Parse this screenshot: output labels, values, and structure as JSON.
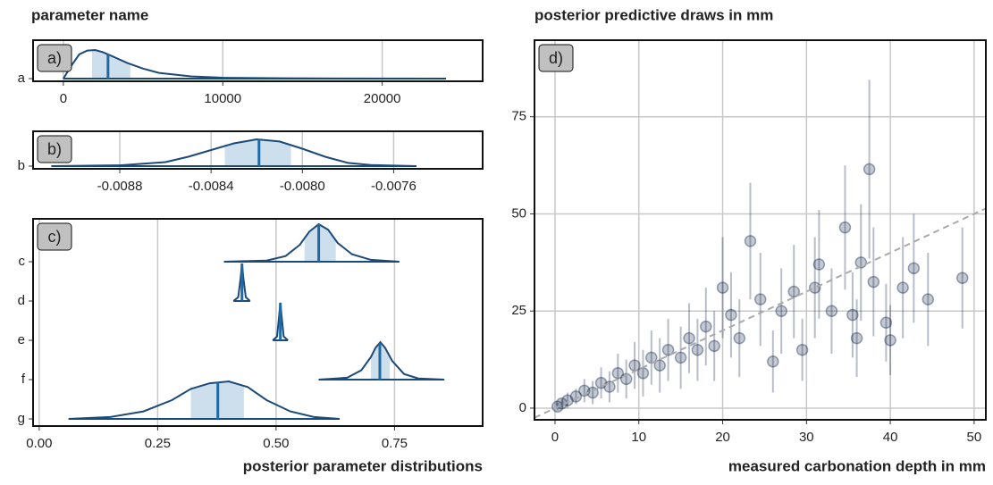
{
  "chart_data": [
    {
      "type": "ridge",
      "ylabel": "parameter name",
      "panel_label": "a)",
      "categories": [
        "a"
      ],
      "xlim": [
        -1900,
        26300
      ],
      "xticks": [
        0,
        10000,
        20000
      ],
      "grid": true,
      "color": "#1b4a7a",
      "interval_color": "#cddeec",
      "distributions": [
        {
          "x": [
            0,
            500,
            1000,
            1500,
            2000,
            2500,
            3000,
            4000,
            5000,
            6000,
            8000,
            10000,
            14000,
            18000,
            24000
          ],
          "density": [
            0,
            0.45,
            0.85,
            0.98,
            1,
            0.92,
            0.8,
            0.55,
            0.35,
            0.2,
            0.08,
            0.03,
            0.01,
            0.003,
            0
          ],
          "median": 2800,
          "interval": [
            1800,
            4200
          ]
        }
      ]
    },
    {
      "type": "ridge",
      "panel_label": "b)",
      "categories": [
        "b"
      ],
      "xlim": [
        -0.00918,
        -0.00721
      ],
      "xticks": [
        -0.0088,
        -0.0084,
        {
          "value": -0.008,
          "label": "-0.0080"
        },
        -0.0076
      ],
      "grid": true,
      "color": "#1b4a7a",
      "interval_color": "#cddeec",
      "distributions": [
        {
          "x": [
            -0.0091,
            -0.0088,
            -0.0086,
            -0.0085,
            -0.0084,
            -0.0083,
            -0.0082,
            -0.0081,
            -0.008,
            -0.0079,
            -0.0078,
            -0.0077,
            -0.0075
          ],
          "density": [
            0,
            0.03,
            0.15,
            0.35,
            0.6,
            0.85,
            1,
            0.92,
            0.65,
            0.35,
            0.12,
            0.04,
            0
          ],
          "median": -0.00819,
          "interval": [
            -0.00834,
            -0.00805
          ]
        }
      ]
    },
    {
      "type": "ridge",
      "panel_label": "c)",
      "xlabel": "posterior parameter distributions",
      "categories": [
        "c",
        "d",
        "e",
        "f",
        "g"
      ],
      "xlim": [
        -0.013,
        0.936
      ],
      "xticks": [
        {
          "value": 0,
          "label": "0.00"
        },
        {
          "value": 0.25,
          "label": "0.25"
        },
        {
          "value": 0.5,
          "label": "0.50"
        },
        {
          "value": 0.75,
          "label": "0.75"
        }
      ],
      "grid": true,
      "color": "#1b4a7a",
      "interval_color": "#cddeec",
      "distributions": [
        {
          "x": [
            0.39,
            0.48,
            0.52,
            0.55,
            0.57,
            0.59,
            0.61,
            0.63,
            0.66,
            0.7,
            0.76
          ],
          "density": [
            0,
            0.03,
            0.15,
            0.45,
            0.8,
            1,
            0.85,
            0.5,
            0.2,
            0.05,
            0
          ],
          "median": 0.59,
          "interval": [
            0.56,
            0.626
          ]
        },
        {
          "x": [
            0.41,
            0.42,
            0.425,
            0.428,
            0.431,
            0.436,
            0.445
          ],
          "density": [
            0,
            0.1,
            0.6,
            1,
            0.6,
            0.1,
            0
          ],
          "median": 0.428,
          "interval": [
            0.425,
            0.431
          ]
        },
        {
          "x": [
            0.493,
            0.502,
            0.506,
            0.509,
            0.512,
            0.516,
            0.525
          ],
          "density": [
            0,
            0.1,
            0.6,
            1,
            0.6,
            0.1,
            0
          ],
          "median": 0.509,
          "interval": [
            0.506,
            0.512
          ]
        },
        {
          "x": [
            0.59,
            0.65,
            0.68,
            0.7,
            0.71,
            0.72,
            0.73,
            0.745,
            0.77,
            0.8,
            0.855
          ],
          "density": [
            0,
            0.05,
            0.25,
            0.6,
            0.85,
            1,
            0.85,
            0.5,
            0.15,
            0.03,
            0
          ],
          "median": 0.719,
          "interval": [
            0.7,
            0.74
          ]
        },
        {
          "x": [
            0.062,
            0.15,
            0.22,
            0.28,
            0.32,
            0.36,
            0.4,
            0.44,
            0.48,
            0.53,
            0.58,
            0.634
          ],
          "density": [
            0,
            0.05,
            0.2,
            0.5,
            0.8,
            0.95,
            1,
            0.85,
            0.5,
            0.2,
            0.05,
            0
          ],
          "median": 0.377,
          "interval": [
            0.32,
            0.432
          ]
        }
      ]
    },
    {
      "type": "scatter",
      "title": "posterior predictive draws in mm",
      "xlabel": "measured carbonation depth in mm",
      "panel_label": "d)",
      "xlim": [
        -2.45,
        51.4
      ],
      "ylim": [
        -3,
        94.7
      ],
      "xticks": [
        0,
        10,
        20,
        30,
        40,
        50
      ],
      "yticks": [
        0,
        25,
        50,
        75
      ],
      "grid": true,
      "color": "#12264d",
      "identity_line": true,
      "x": [
        0.3,
        0.8,
        1.5,
        2.5,
        3.5,
        4.5,
        5.5,
        6.5,
        7.5,
        8.5,
        9.5,
        10.5,
        11.5,
        12.5,
        13.5,
        15,
        16,
        17,
        18,
        19,
        20,
        21,
        22,
        23.3,
        24.5,
        26,
        27,
        28.5,
        29.5,
        31,
        31.5,
        33,
        34.6,
        35.5,
        36.5,
        37.5,
        36,
        38,
        39.5,
        40,
        41.5,
        42.8,
        44.5,
        48.6
      ],
      "values": [
        0.4,
        1.2,
        2,
        3,
        4.5,
        4,
        6.5,
        5.5,
        9,
        7.5,
        11,
        9,
        13,
        11,
        15,
        13,
        18,
        15,
        21,
        16,
        31,
        24,
        18,
        43,
        28,
        12,
        25,
        30,
        15,
        31,
        37,
        25,
        46.5,
        24,
        37.5,
        61.5,
        18,
        32.5,
        22,
        17.5,
        31,
        36,
        28,
        33.5
      ],
      "lower": [
        -0.6,
        0.2,
        0,
        1,
        1.5,
        1,
        2.5,
        1.5,
        4,
        2.5,
        5,
        3,
        6,
        4,
        7,
        5,
        9,
        7,
        11,
        7,
        18,
        13,
        8,
        28,
        16,
        4,
        14,
        18,
        7,
        18,
        23,
        14,
        30.5,
        13,
        22.5,
        38.5,
        8,
        18.5,
        12,
        8.5,
        18,
        22,
        16,
        20.5
      ],
      "upper": [
        1.4,
        2.2,
        4,
        5,
        7.5,
        7,
        10.5,
        9.5,
        14,
        12.5,
        17,
        15,
        20,
        18,
        23,
        21,
        27,
        23,
        31,
        25,
        44,
        35,
        28,
        58,
        40,
        20,
        36,
        42,
        23,
        44,
        51,
        36,
        62.5,
        35,
        52.5,
        84.5,
        28,
        46.5,
        32,
        26.5,
        44,
        50,
        40,
        46.5
      ]
    }
  ]
}
